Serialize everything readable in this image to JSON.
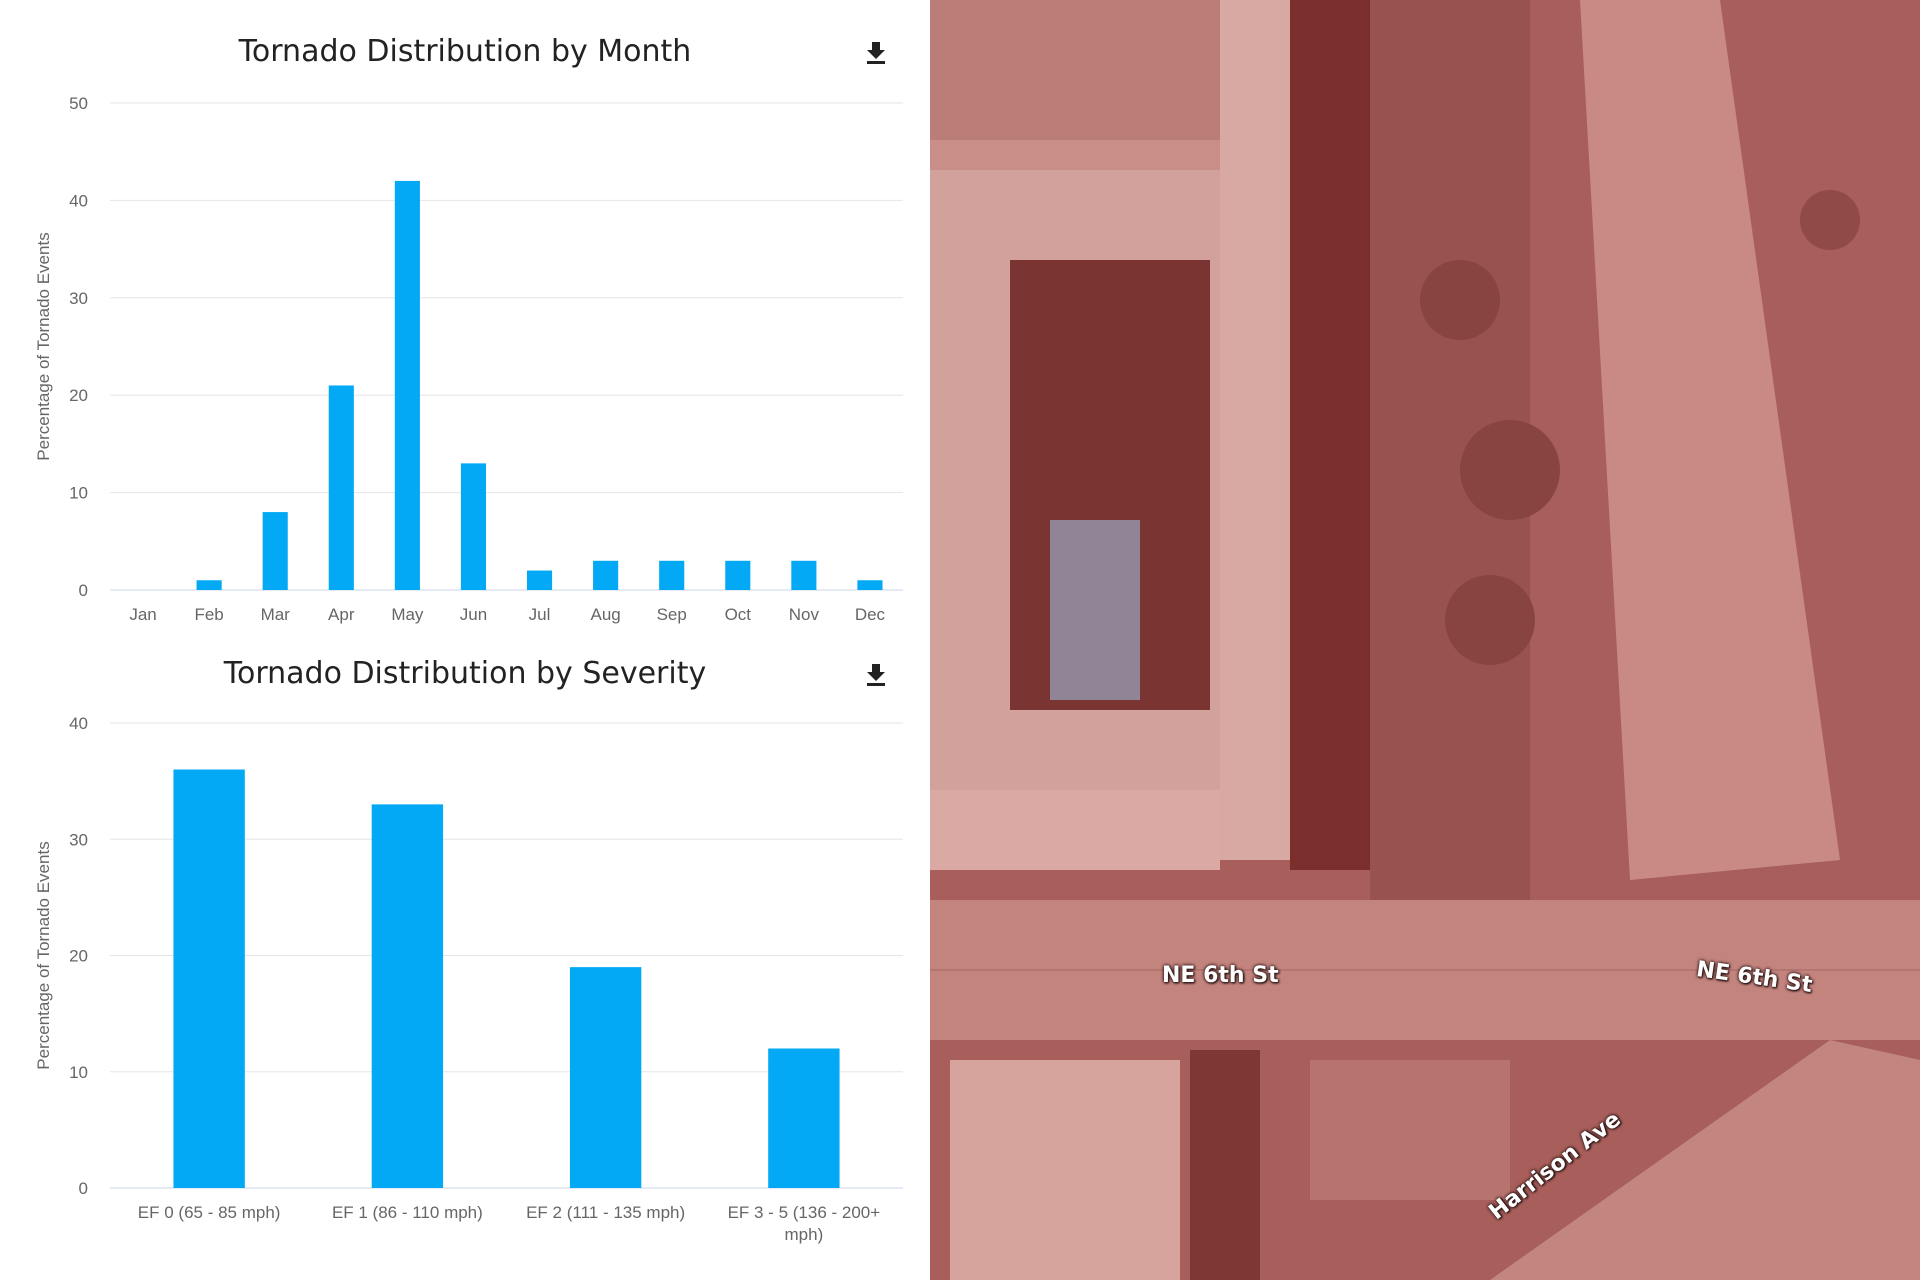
{
  "colors": {
    "bar": "#03a9f4",
    "grid": "#e6e6e6",
    "axis": "#ccd6eb",
    "text": "#666666",
    "map_tint": "#a65c58"
  },
  "chart_data": [
    {
      "type": "bar",
      "title": "Tornado Distribution by Month",
      "ylabel": "Percentage of Tornado Events",
      "xlabel": "",
      "ylim": [
        0,
        50
      ],
      "yticks": [
        "0",
        "10",
        "20",
        "30",
        "40",
        "50"
      ],
      "categories": [
        "Jan",
        "Feb",
        "Mar",
        "Apr",
        "May",
        "Jun",
        "Jul",
        "Aug",
        "Sep",
        "Oct",
        "Nov",
        "Dec"
      ],
      "values": [
        0,
        1,
        8,
        21,
        42,
        13,
        2,
        3,
        3,
        3,
        3,
        1
      ],
      "grid": true,
      "download_icon": "download-icon"
    },
    {
      "type": "bar",
      "title": "Tornado Distribution by Severity",
      "ylabel": "Percentage of Tornado Events",
      "xlabel": "",
      "ylim": [
        0,
        40
      ],
      "yticks": [
        "0",
        "10",
        "20",
        "30",
        "40"
      ],
      "categories": [
        "EF 0 (65 - 85 mph)",
        "EF 1 (86 - 110 mph)",
        "EF 2 (111 - 135 mph)",
        "EF 3 - 5 (136 - 200+ mph)"
      ],
      "values": [
        36,
        33,
        19,
        12
      ],
      "grid": true,
      "download_icon": "download-icon"
    }
  ],
  "map": {
    "labels": [
      "NE 6th St",
      "NE 6th St",
      "Harrison Ave"
    ]
  }
}
